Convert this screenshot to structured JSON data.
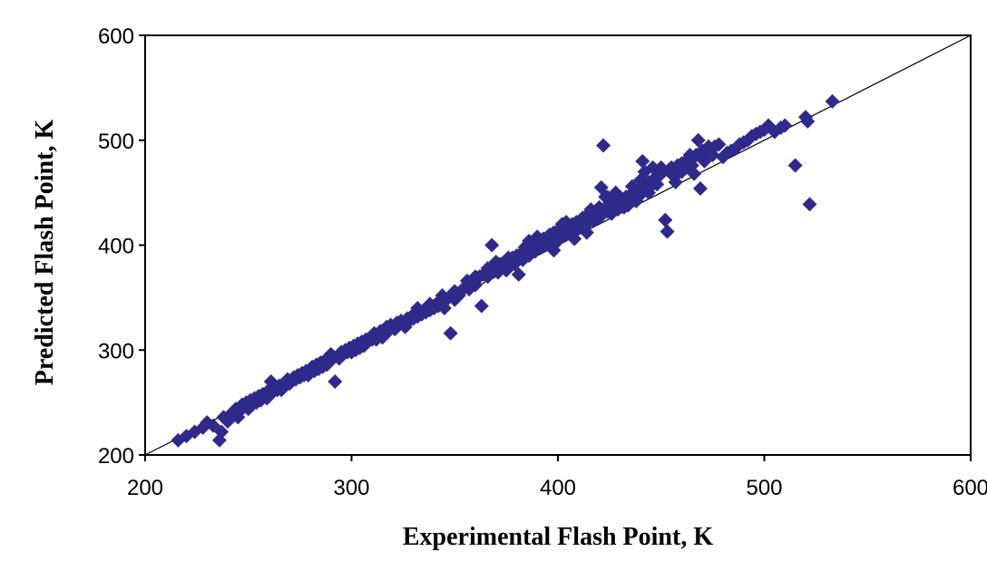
{
  "chart_data": {
    "type": "scatter",
    "title": "",
    "xlabel": "Experimental Flash Point, K",
    "ylabel": "Predicted Flash Point, K",
    "xlim": [
      200,
      600
    ],
    "ylim": [
      200,
      600
    ],
    "xticks": [
      "200",
      "300",
      "400",
      "500",
      "600"
    ],
    "yticks": [
      "200",
      "300",
      "400",
      "500",
      "600"
    ],
    "grid": false,
    "legend": "none",
    "marker": "diamond",
    "marker_color": "#2f2a8a",
    "reference_line": {
      "type": "y=x",
      "color": "#000000"
    },
    "series": [
      {
        "points": [
          [
            216,
            214
          ],
          [
            220,
            218
          ],
          [
            224,
            222
          ],
          [
            228,
            226
          ],
          [
            230,
            231
          ],
          [
            233,
            228
          ],
          [
            236,
            214
          ],
          [
            237,
            222
          ],
          [
            238,
            236
          ],
          [
            240,
            232
          ],
          [
            241,
            238
          ],
          [
            243,
            240
          ],
          [
            244,
            244
          ],
          [
            245,
            236
          ],
          [
            246,
            242
          ],
          [
            247,
            248
          ],
          [
            248,
            246
          ],
          [
            249,
            250
          ],
          [
            250,
            244
          ],
          [
            251,
            252
          ],
          [
            252,
            248
          ],
          [
            253,
            254
          ],
          [
            254,
            250
          ],
          [
            255,
            256
          ],
          [
            256,
            252
          ],
          [
            257,
            258
          ],
          [
            258,
            256
          ],
          [
            259,
            254
          ],
          [
            260,
            262
          ],
          [
            261,
            270
          ],
          [
            262,
            260
          ],
          [
            263,
            264
          ],
          [
            264,
            262
          ],
          [
            265,
            266
          ],
          [
            266,
            262
          ],
          [
            267,
            268
          ],
          [
            268,
            266
          ],
          [
            269,
            272
          ],
          [
            270,
            268
          ],
          [
            271,
            270
          ],
          [
            272,
            274
          ],
          [
            273,
            272
          ],
          [
            274,
            276
          ],
          [
            275,
            274
          ],
          [
            276,
            278
          ],
          [
            277,
            276
          ],
          [
            278,
            280
          ],
          [
            279,
            276
          ],
          [
            280,
            282
          ],
          [
            281,
            284
          ],
          [
            282,
            280
          ],
          [
            283,
            286
          ],
          [
            284,
            282
          ],
          [
            285,
            288
          ],
          [
            286,
            284
          ],
          [
            287,
            290
          ],
          [
            288,
            286
          ],
          [
            289,
            288
          ],
          [
            290,
            296
          ],
          [
            291,
            292
          ],
          [
            292,
            270
          ],
          [
            293,
            294
          ],
          [
            294,
            292
          ],
          [
            295,
            298
          ],
          [
            296,
            296
          ],
          [
            297,
            300
          ],
          [
            298,
            298
          ],
          [
            299,
            302
          ],
          [
            300,
            298
          ],
          [
            301,
            304
          ],
          [
            302,
            300
          ],
          [
            303,
            306
          ],
          [
            304,
            302
          ],
          [
            305,
            308
          ],
          [
            306,
            304
          ],
          [
            307,
            310
          ],
          [
            308,
            308
          ],
          [
            309,
            312
          ],
          [
            310,
            310
          ],
          [
            311,
            316
          ],
          [
            312,
            310
          ],
          [
            313,
            314
          ],
          [
            314,
            318
          ],
          [
            315,
            312
          ],
          [
            316,
            320
          ],
          [
            317,
            322
          ],
          [
            318,
            318
          ],
          [
            319,
            324
          ],
          [
            320,
            322
          ],
          [
            321,
            320
          ],
          [
            322,
            326
          ],
          [
            323,
            324
          ],
          [
            324,
            328
          ],
          [
            325,
            326
          ],
          [
            326,
            322
          ],
          [
            327,
            330
          ],
          [
            328,
            328
          ],
          [
            329,
            332
          ],
          [
            330,
            330
          ],
          [
            331,
            334
          ],
          [
            332,
            332
          ],
          [
            333,
            336
          ],
          [
            334,
            334
          ],
          [
            335,
            338
          ],
          [
            336,
            336
          ],
          [
            337,
            340
          ],
          [
            338,
            338
          ],
          [
            339,
            342
          ],
          [
            340,
            340
          ],
          [
            341,
            344
          ],
          [
            342,
            342
          ],
          [
            343,
            346
          ],
          [
            344,
            344
          ],
          [
            345,
            340
          ],
          [
            346,
            348
          ],
          [
            347,
            350
          ],
          [
            348,
            316
          ],
          [
            349,
            352
          ],
          [
            350,
            348
          ],
          [
            351,
            354
          ],
          [
            352,
            352
          ],
          [
            353,
            356
          ],
          [
            354,
            358
          ],
          [
            355,
            360
          ],
          [
            356,
            362
          ],
          [
            357,
            358
          ],
          [
            358,
            364
          ],
          [
            359,
            366
          ],
          [
            360,
            362
          ],
          [
            361,
            368
          ],
          [
            362,
            370
          ],
          [
            363,
            342
          ],
          [
            364,
            372
          ],
          [
            365,
            374
          ],
          [
            366,
            370
          ],
          [
            367,
            376
          ],
          [
            368,
            400
          ],
          [
            369,
            378
          ],
          [
            370,
            380
          ],
          [
            371,
            374
          ],
          [
            372,
            382
          ],
          [
            373,
            380
          ],
          [
            374,
            384
          ],
          [
            375,
            376
          ],
          [
            376,
            386
          ],
          [
            377,
            384
          ],
          [
            378,
            388
          ],
          [
            379,
            382
          ],
          [
            380,
            390
          ],
          [
            381,
            372
          ],
          [
            382,
            392
          ],
          [
            383,
            386
          ],
          [
            384,
            394
          ],
          [
            385,
            396
          ],
          [
            386,
            390
          ],
          [
            387,
            398
          ],
          [
            388,
            400
          ],
          [
            389,
            394
          ],
          [
            390,
            402
          ],
          [
            391,
            404
          ],
          [
            392,
            398
          ],
          [
            393,
            406
          ],
          [
            394,
            402
          ],
          [
            395,
            408
          ],
          [
            396,
            400
          ],
          [
            397,
            410
          ],
          [
            398,
            404
          ],
          [
            399,
            412
          ],
          [
            400,
            406
          ],
          [
            401,
            414
          ],
          [
            402,
            408
          ],
          [
            403,
            416
          ],
          [
            404,
            410
          ],
          [
            405,
            418
          ],
          [
            406,
            412
          ],
          [
            407,
            420
          ],
          [
            408,
            414
          ],
          [
            409,
            422
          ],
          [
            410,
            416
          ],
          [
            411,
            424
          ],
          [
            412,
            418
          ],
          [
            413,
            426
          ],
          [
            414,
            420
          ],
          [
            415,
            422
          ],
          [
            416,
            426
          ],
          [
            417,
            424
          ],
          [
            418,
            428
          ],
          [
            419,
            430
          ],
          [
            420,
            426
          ],
          [
            421,
            455
          ],
          [
            422,
            495
          ],
          [
            423,
            446
          ],
          [
            424,
            432
          ],
          [
            425,
            436
          ],
          [
            426,
            430
          ],
          [
            427,
            438
          ],
          [
            428,
            440
          ],
          [
            429,
            434
          ],
          [
            430,
            442
          ],
          [
            431,
            444
          ],
          [
            432,
            436
          ],
          [
            433,
            446
          ],
          [
            434,
            440
          ],
          [
            435,
            448
          ],
          [
            436,
            444
          ],
          [
            437,
            450
          ],
          [
            438,
            442
          ],
          [
            439,
            452
          ],
          [
            440,
            448
          ],
          [
            441,
            480
          ],
          [
            442,
            458
          ],
          [
            443,
            454
          ],
          [
            444,
            460
          ],
          [
            445,
            456
          ],
          [
            446,
            462
          ],
          [
            447,
            464
          ],
          [
            448,
            458
          ],
          [
            449,
            466
          ],
          [
            450,
            468
          ],
          [
            451,
            470
          ],
          [
            452,
            424
          ],
          [
            453,
            413
          ],
          [
            454,
            472
          ],
          [
            455,
            474
          ],
          [
            456,
            466
          ],
          [
            457,
            460
          ],
          [
            458,
            476
          ],
          [
            459,
            470
          ],
          [
            460,
            478
          ],
          [
            461,
            472
          ],
          [
            462,
            480
          ],
          [
            463,
            474
          ],
          [
            464,
            482
          ],
          [
            465,
            476
          ],
          [
            466,
            484
          ],
          [
            467,
            486
          ],
          [
            468,
            500
          ],
          [
            469,
            454
          ],
          [
            470,
            490
          ],
          [
            471,
            480
          ],
          [
            472,
            488
          ],
          [
            473,
            494
          ],
          [
            474,
            492
          ],
          [
            475,
            486
          ],
          [
            476,
            494
          ],
          [
            478,
            496
          ],
          [
            480,
            484
          ],
          [
            482,
            488
          ],
          [
            484,
            490
          ],
          [
            486,
            492
          ],
          [
            488,
            496
          ],
          [
            490,
            498
          ],
          [
            492,
            500
          ],
          [
            494,
            504
          ],
          [
            496,
            506
          ],
          [
            498,
            508
          ],
          [
            500,
            510
          ],
          [
            502,
            514
          ],
          [
            505,
            508
          ],
          [
            508,
            512
          ],
          [
            510,
            514
          ],
          [
            515,
            476
          ],
          [
            520,
            522
          ],
          [
            521,
            518
          ],
          [
            522,
            439
          ],
          [
            533,
            537
          ],
          [
            398,
            395
          ],
          [
            396,
            410
          ],
          [
            404,
            422
          ],
          [
            406,
            418
          ],
          [
            412,
            426
          ],
          [
            415,
            430
          ],
          [
            418,
            424
          ],
          [
            425,
            440
          ],
          [
            430,
            446
          ],
          [
            436,
            456
          ],
          [
            440,
            462
          ],
          [
            444,
            450
          ],
          [
            332,
            340
          ],
          [
            338,
            344
          ],
          [
            344,
            352
          ],
          [
            350,
            356
          ],
          [
            356,
            366
          ],
          [
            360,
            370
          ],
          [
            366,
            378
          ],
          [
            370,
            384
          ],
          [
            376,
            388
          ],
          [
            380,
            386
          ],
          [
            384,
            398
          ],
          [
            386,
            404
          ],
          [
            390,
            408
          ],
          [
            394,
            400
          ],
          [
            398,
            412
          ],
          [
            400,
            404
          ],
          [
            402,
            420
          ],
          [
            408,
            406
          ],
          [
            410,
            422
          ],
          [
            414,
            412
          ],
          [
            416,
            434
          ],
          [
            420,
            436
          ],
          [
            424,
            446
          ],
          [
            428,
            450
          ],
          [
            434,
            438
          ],
          [
            438,
            452
          ],
          [
            442,
            470
          ],
          [
            446,
            474
          ],
          [
            450,
            474
          ],
          [
            460,
            470
          ],
          [
            464,
            486
          ],
          [
            466,
            468
          ]
        ]
      }
    ]
  }
}
